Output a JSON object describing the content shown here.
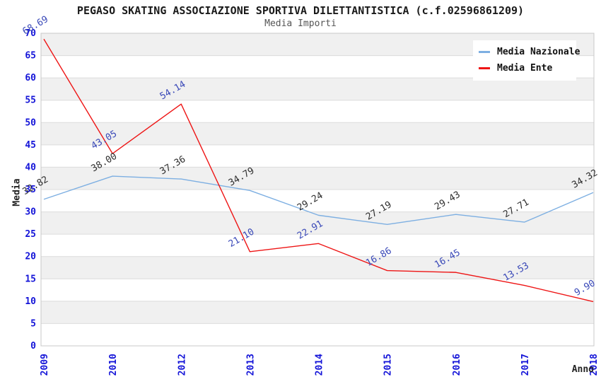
{
  "header": {
    "title": "PEGASO SKATING ASSOCIAZIONE SPORTIVA DILETTANTISTICA (c.f.02596861209)",
    "subtitle": "Media Importi"
  },
  "chart_data": {
    "type": "line",
    "categories": [
      "2009",
      "2010",
      "2012",
      "2013",
      "2014",
      "2015",
      "2016",
      "2017",
      "2018"
    ],
    "series": [
      {
        "name": "Media Nazionale",
        "color": "#7dafe2",
        "label_color": "#2e2e2e",
        "values": [
          32.82,
          38.0,
          37.36,
          34.79,
          29.24,
          27.19,
          29.43,
          27.71,
          34.32
        ]
      },
      {
        "name": "Media Ente",
        "color": "#ee1515",
        "label_color": "#3a49b8",
        "values": [
          68.69,
          43.05,
          54.14,
          21.1,
          22.91,
          16.86,
          16.45,
          13.53,
          9.9
        ]
      }
    ],
    "xlabel": "Anno",
    "ylabel": "Media",
    "ylim": [
      0,
      70
    ],
    "ytick_step": 5,
    "grid": "banded",
    "legend_position": "top-right",
    "colors": {
      "band": "#f0f0f0",
      "band_alt": "#ffffff",
      "gridline": "#dcdcdc",
      "frame": "#c8c8c8",
      "tick_label": "#1414d8"
    }
  }
}
